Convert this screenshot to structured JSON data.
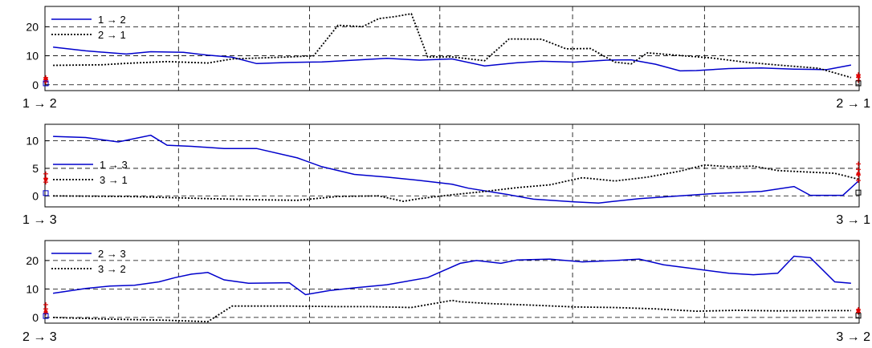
{
  "chart_data": [
    {
      "type": "line",
      "ylim": [
        -2,
        27
      ],
      "yticks": [
        0,
        10,
        20
      ],
      "xlim": [
        0,
        1
      ],
      "grid": true,
      "legend_position": "top-left",
      "endpoint_labels": {
        "left": "1 → 2",
        "right": "2 → 1"
      },
      "series": [
        {
          "name": "1 → 2",
          "style": "solid",
          "color": "#0000cc",
          "x": [
            0.01,
            0.05,
            0.1,
            0.13,
            0.17,
            0.2,
            0.23,
            0.26,
            0.3,
            0.34,
            0.38,
            0.42,
            0.46,
            0.5,
            0.54,
            0.58,
            0.61,
            0.65,
            0.69,
            0.72,
            0.75,
            0.78,
            0.8,
            0.84,
            0.88,
            0.92,
            0.96,
            0.99
          ],
          "y": [
            13,
            11.7,
            10.6,
            11.4,
            11.2,
            10.2,
            9.5,
            7.3,
            7.7,
            7.9,
            8.5,
            9.1,
            8.5,
            8.9,
            6.5,
            7.6,
            8.1,
            7.8,
            8.5,
            8.6,
            7.1,
            4.8,
            4.9,
            5.6,
            5.8,
            5.4,
            5.2,
            6.8
          ]
        },
        {
          "name": "2 → 1",
          "style": "dotted",
          "color": "#000000",
          "x": [
            0.01,
            0.07,
            0.1,
            0.15,
            0.2,
            0.23,
            0.3,
            0.33,
            0.36,
            0.39,
            0.41,
            0.43,
            0.45,
            0.47,
            0.5,
            0.54,
            0.57,
            0.61,
            0.64,
            0.67,
            0.7,
            0.72,
            0.74,
            0.78,
            0.82,
            0.86,
            0.9,
            0.95,
            0.99
          ],
          "y": [
            6.7,
            6.9,
            7.4,
            8.0,
            7.5,
            8.9,
            9.6,
            10.0,
            20.5,
            20.0,
            22.8,
            23.5,
            24.5,
            9.6,
            9.6,
            8.3,
            15.8,
            15.7,
            12.4,
            12.5,
            7.8,
            7.2,
            11.0,
            10.1,
            9.2,
            7.8,
            6.8,
            5.7,
            2.5
          ]
        }
      ],
      "endpoint_markers": {
        "left": {
          "square": 0.5,
          "plus": [
            1.0,
            1.8,
            2.5
          ],
          "asterisk": 2.0
        },
        "right": {
          "square": 0.5,
          "plus": [
            1.5,
            2.5,
            3.5
          ],
          "asterisk": 3.0
        }
      }
    },
    {
      "type": "line",
      "ylim": [
        -2,
        13
      ],
      "yticks": [
        0,
        5,
        10
      ],
      "xlim": [
        0,
        1
      ],
      "grid": true,
      "legend_position": "middle-left",
      "endpoint_labels": {
        "left": "1 → 3",
        "right": "3 → 1"
      },
      "series": [
        {
          "name": "1 → 3",
          "style": "solid",
          "color": "#0000cc",
          "x": [
            0.01,
            0.05,
            0.09,
            0.13,
            0.15,
            0.18,
            0.22,
            0.26,
            0.31,
            0.34,
            0.38,
            0.42,
            0.46,
            0.5,
            0.52,
            0.57,
            0.6,
            0.65,
            0.68,
            0.73,
            0.78,
            0.82,
            0.88,
            0.92,
            0.94,
            0.98,
            1.0
          ],
          "y": [
            10.8,
            10.6,
            9.8,
            11.0,
            9.2,
            9.0,
            8.6,
            8.6,
            6.9,
            5.3,
            3.9,
            3.4,
            2.8,
            2.1,
            1.4,
            0.2,
            -0.6,
            -1.1,
            -1.3,
            -0.5,
            0.0,
            0.4,
            0.8,
            1.7,
            0.1,
            0.1,
            2.8
          ]
        },
        {
          "name": "3 → 1",
          "style": "dotted",
          "color": "#000000",
          "x": [
            0.01,
            0.1,
            0.2,
            0.26,
            0.31,
            0.36,
            0.41,
            0.44,
            0.46,
            0.5,
            0.54,
            0.58,
            0.62,
            0.66,
            0.7,
            0.74,
            0.78,
            0.81,
            0.84,
            0.87,
            0.9,
            0.94,
            0.97,
            1.0
          ],
          "y": [
            0.0,
            -0.1,
            -0.5,
            -0.7,
            -0.8,
            -0.1,
            0.0,
            -1.0,
            -0.5,
            0.2,
            0.8,
            1.5,
            2.0,
            3.3,
            2.7,
            3.4,
            4.5,
            5.6,
            5.3,
            5.4,
            4.6,
            4.3,
            4.1,
            3.0
          ]
        }
      ],
      "endpoint_markers": {
        "left": {
          "square": 0.5,
          "plus": [
            2.5,
            3.2,
            4.0
          ],
          "asterisk": 3.0
        },
        "right": {
          "square": 0.6,
          "plus": [
            2.8,
            3.8,
            4.8,
            5.8
          ],
          "asterisk": 4.0
        }
      }
    },
    {
      "type": "line",
      "ylim": [
        -2,
        27
      ],
      "yticks": [
        0,
        10,
        20
      ],
      "xlim": [
        0,
        1
      ],
      "grid": true,
      "legend_position": "top-left",
      "endpoint_labels": {
        "left": "2 → 3",
        "right": "3 → 2"
      },
      "series": [
        {
          "name": "2 → 3",
          "style": "solid",
          "color": "#0000cc",
          "x": [
            0.01,
            0.05,
            0.08,
            0.11,
            0.14,
            0.16,
            0.18,
            0.2,
            0.22,
            0.25,
            0.3,
            0.32,
            0.35,
            0.38,
            0.42,
            0.47,
            0.51,
            0.53,
            0.56,
            0.58,
            0.62,
            0.66,
            0.7,
            0.73,
            0.76,
            0.8,
            0.84,
            0.87,
            0.9,
            0.92,
            0.94,
            0.97,
            0.99
          ],
          "y": [
            8.5,
            10.2,
            11.0,
            11.3,
            12.5,
            14.0,
            15.2,
            15.8,
            13.2,
            12.0,
            12.2,
            8.0,
            9.5,
            10.4,
            11.5,
            14.0,
            19.0,
            20.0,
            19.0,
            20.2,
            20.5,
            19.5,
            20.0,
            20.5,
            18.5,
            17.0,
            15.5,
            15.0,
            15.5,
            21.5,
            21.0,
            12.5,
            12.0
          ]
        },
        {
          "name": "3 → 2",
          "style": "dotted",
          "color": "#000000",
          "x": [
            0.01,
            0.08,
            0.15,
            0.2,
            0.23,
            0.3,
            0.36,
            0.4,
            0.45,
            0.5,
            0.51,
            0.55,
            0.6,
            0.65,
            0.7,
            0.75,
            0.8,
            0.85,
            0.9,
            0.95,
            0.99
          ],
          "y": [
            0.0,
            -0.6,
            -1.0,
            -1.5,
            4.0,
            4.0,
            3.8,
            3.8,
            3.5,
            6.0,
            5.5,
            4.8,
            4.3,
            3.7,
            3.5,
            3.0,
            2.2,
            2.5,
            2.3,
            2.4,
            2.4
          ]
        }
      ],
      "endpoint_markers": {
        "left": {
          "square": 0.5,
          "plus": [
            1.5,
            3.0,
            4.5
          ],
          "asterisk": 2.0
        },
        "right": {
          "square": 0.6,
          "plus": [
            1.8,
            2.8
          ],
          "asterisk": 2.5
        }
      }
    }
  ]
}
